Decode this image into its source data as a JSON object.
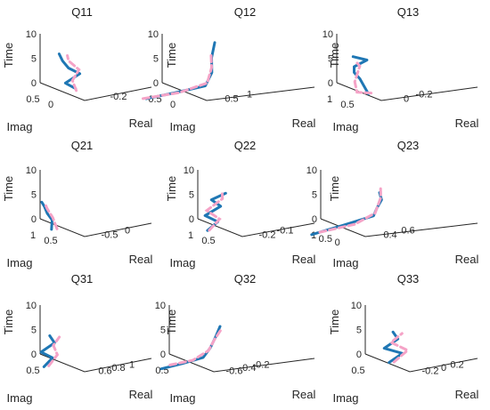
{
  "chart_data": [
    {
      "id": "Q11",
      "type": "line",
      "title": "Q11",
      "zlabel": "Time",
      "ylabel": "Imag",
      "xlabel": "Real",
      "zticks": [
        "10",
        "5",
        "0"
      ],
      "yticks": [
        "0.5",
        "0"
      ],
      "xticks": [
        "-0.2"
      ],
      "series": [
        {
          "values": [
            [
              -0.18,
              0,
              0
            ],
            [
              -0.22,
              0.1,
              1.5
            ],
            [
              -0.14,
              0.05,
              3
            ],
            [
              -0.2,
              0.1,
              4.5
            ],
            [
              -0.25,
              0.05,
              6
            ],
            [
              -0.28,
              0.02,
              7.5
            ]
          ]
        },
        {
          "values": [
            [
              -0.1,
              0.3,
              0
            ],
            [
              -0.15,
              0.2,
              2
            ],
            [
              -0.12,
              0.15,
              4
            ],
            [
              -0.2,
              0.1,
              6
            ],
            [
              -0.22,
              0.05,
              7
            ]
          ]
        }
      ]
    },
    {
      "id": "Q12",
      "type": "line",
      "title": "Q12",
      "zlabel": "Time",
      "ylabel": "Imag",
      "xlabel": "Real",
      "zticks": [
        "10",
        "5",
        "0"
      ],
      "yticks": [
        "0.5",
        "0"
      ],
      "xticks": [
        "0.5",
        "1"
      ],
      "series": [
        {
          "values": [
            [
              0,
              0.8,
              0
            ],
            [
              0.3,
              0.5,
              0.2
            ],
            [
              0.6,
              0.1,
              0.5
            ],
            [
              0.68,
              0.05,
              3
            ],
            [
              0.66,
              0.02,
              6
            ],
            [
              0.7,
              0,
              9
            ]
          ]
        },
        {
          "values": [
            [
              0,
              0.9,
              0.2
            ],
            [
              0.35,
              0.45,
              0.1
            ],
            [
              0.62,
              0.08,
              1
            ],
            [
              0.67,
              0.04,
              4
            ],
            [
              0.65,
              0.02,
              7
            ]
          ]
        }
      ]
    },
    {
      "id": "Q13",
      "type": "line",
      "title": "Q13",
      "zlabel": "Time",
      "ylabel": "Imag",
      "xlabel": "Real",
      "zticks": [
        "10",
        "5",
        "0"
      ],
      "yticks": [
        "1",
        "0.5"
      ],
      "xticks": [
        "0",
        "-0.2"
      ],
      "series": [
        {
          "values": [
            [
              0.1,
              1,
              0
            ],
            [
              -0.05,
              0.7,
              3
            ],
            [
              -0.2,
              0.3,
              4
            ],
            [
              -0.25,
              0.1,
              5
            ],
            [
              -0.15,
              0.05,
              6
            ],
            [
              -0.28,
              0.02,
              7
            ]
          ]
        },
        {
          "values": [
            [
              0.1,
              0.9,
              0
            ],
            [
              -0.1,
              0.6,
              0.2
            ],
            [
              -0.22,
              0.2,
              2
            ],
            [
              -0.2,
              0.1,
              5
            ],
            [
              -0.25,
              0.05,
              6
            ]
          ]
        }
      ]
    },
    {
      "id": "Q21",
      "type": "line",
      "title": "Q21",
      "zlabel": "Time",
      "ylabel": "Imag",
      "xlabel": "Real",
      "zticks": [
        "10",
        "5",
        "0"
      ],
      "yticks": [
        "1",
        "0.5"
      ],
      "xticks": [
        "-0.5",
        "0"
      ],
      "series": [
        {
          "values": [
            [
              -0.6,
              0.4,
              0
            ],
            [
              -0.55,
              0.5,
              2
            ],
            [
              -0.6,
              0.55,
              3.5
            ],
            [
              -0.62,
              0.6,
              5
            ],
            [
              -0.65,
              0.62,
              6
            ]
          ]
        },
        {
          "values": [
            [
              -0.5,
              0.45,
              0
            ],
            [
              -0.52,
              0.55,
              2.5
            ],
            [
              -0.58,
              0.6,
              4.5
            ],
            [
              -0.6,
              0.62,
              5.5
            ]
          ]
        }
      ]
    },
    {
      "id": "Q22",
      "type": "line",
      "title": "Q22",
      "zlabel": "Time",
      "ylabel": "Imag",
      "xlabel": "Real",
      "zticks": [
        "10",
        "5",
        "0"
      ],
      "yticks": [
        "1",
        "0.5"
      ],
      "xticks": [
        "-0.2",
        "-0.1"
      ],
      "series": [
        {
          "values": [
            [
              -0.25,
              0.6,
              0
            ],
            [
              -0.2,
              0.55,
              1.5
            ],
            [
              -0.28,
              0.5,
              3
            ],
            [
              -0.2,
              0.45,
              4.5
            ],
            [
              -0.26,
              0.4,
              6
            ],
            [
              -0.18,
              0.4,
              7
            ]
          ]
        },
        {
          "values": [
            [
              -0.24,
              0.6,
              0
            ],
            [
              -0.19,
              0.55,
              2
            ],
            [
              -0.27,
              0.5,
              4
            ],
            [
              -0.19,
              0.45,
              6
            ],
            [
              -0.2,
              0.4,
              7.5
            ]
          ]
        }
      ]
    },
    {
      "id": "Q23",
      "type": "line",
      "title": "Q23",
      "zlabel": "Time",
      "ylabel": "Imag",
      "xlabel": "Real",
      "zticks": [
        "10",
        "5",
        "0"
      ],
      "yticks": [
        "1",
        "0.5",
        "0"
      ],
      "xticks": [
        "0.4",
        "0.6"
      ],
      "series": [
        {
          "values": [
            [
              0.2,
              1,
              0
            ],
            [
              0.4,
              0.5,
              0.8
            ],
            [
              0.55,
              0.1,
              1.5
            ],
            [
              0.57,
              0.05,
              3
            ],
            [
              0.6,
              0,
              4.5
            ],
            [
              0.58,
              0,
              6
            ]
          ]
        },
        {
          "values": [
            [
              0.25,
              0.9,
              0.2
            ],
            [
              0.45,
              0.4,
              0.5
            ],
            [
              0.56,
              0.08,
              2
            ],
            [
              0.6,
              0.03,
              5
            ],
            [
              0.59,
              0,
              7
            ]
          ]
        }
      ]
    },
    {
      "id": "Q31",
      "type": "line",
      "title": "Q31",
      "zlabel": "Time",
      "ylabel": "Imag",
      "xlabel": "Real",
      "zticks": [
        "10",
        "5",
        "0"
      ],
      "yticks": [
        "0.5"
      ],
      "xticks": [
        "0.6",
        "0.8",
        "1"
      ],
      "series": [
        {
          "values": [
            [
              0.55,
              0.5,
              0
            ],
            [
              0.6,
              0.4,
              1.5
            ],
            [
              0.5,
              0.45,
              3
            ],
            [
              0.62,
              0.4,
              4.5
            ],
            [
              0.55,
              0.35,
              6
            ]
          ]
        },
        {
          "values": [
            [
              0.58,
              0.45,
              0
            ],
            [
              0.65,
              0.4,
              2
            ],
            [
              0.6,
              0.38,
              4
            ],
            [
              0.65,
              0.35,
              5.5
            ]
          ]
        }
      ]
    },
    {
      "id": "Q32",
      "type": "line",
      "title": "Q32",
      "zlabel": "Time",
      "ylabel": "Imag",
      "xlabel": "Real",
      "zticks": [
        "10",
        "5",
        "0"
      ],
      "yticks": [
        "0.5"
      ],
      "xticks": [
        "-0.6",
        "-0.4",
        "-0.2"
      ],
      "series": [
        {
          "values": [
            [
              -1,
              0.6,
              0
            ],
            [
              -0.8,
              0.4,
              0.3
            ],
            [
              -0.6,
              0.2,
              0.8
            ],
            [
              -0.55,
              0.1,
              2.5
            ],
            [
              -0.5,
              0.05,
              4.5
            ],
            [
              -0.45,
              0.02,
              6.5
            ]
          ]
        },
        {
          "values": [
            [
              -0.9,
              0.55,
              0.5
            ],
            [
              -0.7,
              0.3,
              0.6
            ],
            [
              -0.55,
              0.15,
              2
            ],
            [
              -0.5,
              0.08,
              4
            ],
            [
              -0.42,
              0.03,
              6
            ]
          ]
        }
      ]
    },
    {
      "id": "Q33",
      "type": "line",
      "title": "Q33",
      "zlabel": "Time",
      "ylabel": "Imag",
      "xlabel": "Real",
      "zticks": [
        "10",
        "5",
        "0"
      ],
      "yticks": [
        "0.5"
      ],
      "xticks": [
        "-0.2",
        "0",
        "0.2"
      ],
      "series": [
        {
          "values": [
            [
              -0.1,
              0.2,
              0
            ],
            [
              0,
              0.15,
              1.5
            ],
            [
              -0.15,
              0.18,
              3
            ],
            [
              -0.05,
              0.12,
              4.5
            ],
            [
              -0.1,
              0.1,
              6
            ]
          ]
        },
        {
          "values": [
            [
              -0.05,
              0.22,
              0
            ],
            [
              0.05,
              0.16,
              2
            ],
            [
              -0.1,
              0.15,
              4
            ],
            [
              -0.02,
              0.1,
              5.5
            ]
          ]
        }
      ]
    }
  ]
}
